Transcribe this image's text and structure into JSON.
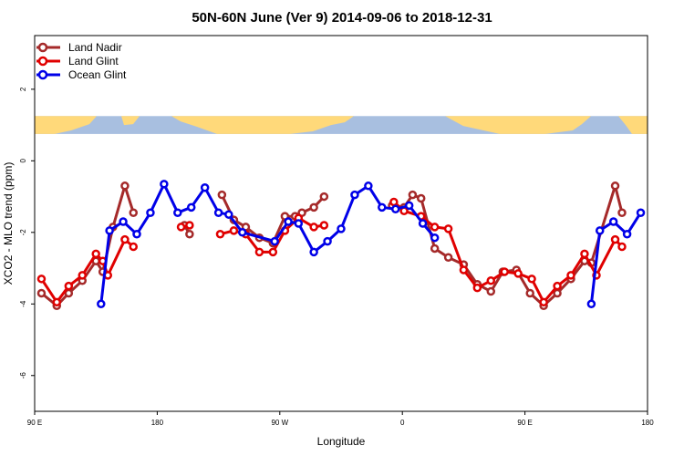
{
  "chart_data": {
    "type": "line",
    "title": "50N-60N June (Ver 9)   2014-09-06 to 2018-12-31",
    "xlabel": "Longitude",
    "ylabel": "XCO2 - MLO trend (ppm)",
    "xlim": [
      0,
      360
    ],
    "ylim": [
      -7,
      3.5
    ],
    "x_ticks": [
      {
        "value": 0,
        "label": "90 E"
      },
      {
        "value": 72,
        "label": "180"
      },
      {
        "value": 144,
        "label": "90 W"
      },
      {
        "value": 216,
        "label": "0"
      },
      {
        "value": 288,
        "label": "90 E"
      },
      {
        "value": 360,
        "label": "180"
      }
    ],
    "y_ticks": [
      2,
      0,
      -2,
      -4,
      -6
    ],
    "legend_position": "top-left",
    "map_strip": {
      "y_top": 1.25,
      "y_bottom": 0.75,
      "ocean_color": "#a8bfe0",
      "land_color": "#ffd97a"
    },
    "series": [
      {
        "name": "Land Nadir",
        "color": "#a52a2a",
        "segments": [
          [
            [
              4,
              -3.7
            ],
            [
              13,
              -4.05
            ],
            [
              20,
              -3.7
            ],
            [
              28,
              -3.35
            ],
            [
              36,
              -2.8
            ],
            [
              40,
              -3.1
            ],
            [
              46,
              -1.85
            ],
            [
              53,
              -0.7
            ],
            [
              58,
              -1.45
            ]
          ],
          [
            [
              88,
              -1.8
            ],
            [
              91,
              -2.05
            ]
          ],
          [
            [
              110,
              -0.95
            ],
            [
              117,
              -1.65
            ],
            [
              124,
              -1.85
            ],
            [
              132,
              -2.15
            ],
            [
              140,
              -2.3
            ],
            [
              147,
              -1.55
            ],
            [
              153,
              -1.55
            ],
            [
              157,
              -1.45
            ],
            [
              164,
              -1.3
            ],
            [
              170,
              -1.0
            ]
          ],
          [
            [
              210,
              -1.25
            ],
            [
              217,
              -1.3
            ],
            [
              222,
              -0.95
            ],
            [
              227,
              -1.05
            ],
            [
              235,
              -2.45
            ],
            [
              243,
              -2.7
            ],
            [
              252,
              -2.9
            ],
            [
              260,
              -3.45
            ],
            [
              268,
              -3.65
            ],
            [
              275,
              -3.1
            ],
            [
              283,
              -3.05
            ],
            [
              291,
              -3.7
            ],
            [
              299,
              -4.05
            ],
            [
              307,
              -3.7
            ],
            [
              315,
              -3.3
            ],
            [
              323,
              -2.8
            ],
            [
              327,
              -2.85
            ],
            [
              341,
              -0.7
            ],
            [
              345,
              -1.45
            ]
          ]
        ]
      },
      {
        "name": "Land Glint",
        "color": "#e00000",
        "segments": [
          [
            [
              4,
              -3.3
            ],
            [
              13,
              -3.95
            ],
            [
              20,
              -3.5
            ],
            [
              28,
              -3.2
            ],
            [
              36,
              -2.6
            ],
            [
              40,
              -2.8
            ],
            [
              43,
              -3.2
            ],
            [
              53,
              -2.2
            ],
            [
              58,
              -2.4
            ]
          ],
          [
            [
              86,
              -1.85
            ],
            [
              91,
              -1.8
            ]
          ],
          [
            [
              109,
              -2.05
            ],
            [
              117,
              -1.95
            ],
            [
              124,
              -2.05
            ],
            [
              132,
              -2.55
            ],
            [
              140,
              -2.55
            ],
            [
              147,
              -1.95
            ],
            [
              155,
              -1.6
            ],
            [
              164,
              -1.85
            ],
            [
              170,
              -1.8
            ]
          ],
          [
            [
              211,
              -1.15
            ],
            [
              217,
              -1.4
            ],
            [
              227,
              -1.55
            ],
            [
              235,
              -1.85
            ],
            [
              243,
              -1.9
            ],
            [
              252,
              -3.05
            ],
            [
              260,
              -3.55
            ],
            [
              268,
              -3.35
            ],
            [
              276,
              -3.1
            ],
            [
              284,
              -3.15
            ],
            [
              292,
              -3.3
            ],
            [
              299,
              -3.95
            ],
            [
              307,
              -3.5
            ],
            [
              315,
              -3.2
            ],
            [
              323,
              -2.6
            ],
            [
              330,
              -3.2
            ],
            [
              341,
              -2.2
            ],
            [
              345,
              -2.4
            ]
          ]
        ]
      },
      {
        "name": "Ocean Glint",
        "color": "#0000e8",
        "segments": [
          [
            [
              39,
              -4.0
            ],
            [
              44,
              -1.95
            ],
            [
              52,
              -1.7
            ],
            [
              60,
              -2.05
            ],
            [
              68,
              -1.45
            ],
            [
              76,
              -0.65
            ],
            [
              84,
              -1.45
            ],
            [
              92,
              -1.3
            ],
            [
              100,
              -0.75
            ],
            [
              108,
              -1.45
            ],
            [
              114,
              -1.5
            ],
            [
              122,
              -2.0
            ],
            [
              141,
              -2.25
            ],
            [
              149,
              -1.7
            ],
            [
              155,
              -1.75
            ],
            [
              164,
              -2.55
            ],
            [
              172,
              -2.25
            ],
            [
              180,
              -1.9
            ],
            [
              188,
              -0.95
            ],
            [
              196,
              -0.7
            ],
            [
              204,
              -1.3
            ],
            [
              212,
              -1.35
            ],
            [
              220,
              -1.25
            ],
            [
              228,
              -1.75
            ],
            [
              235,
              -2.15
            ]
          ],
          [
            [
              327,
              -4.0
            ],
            [
              332,
              -1.95
            ],
            [
              340,
              -1.7
            ],
            [
              348,
              -2.05
            ],
            [
              356,
              -1.45
            ]
          ]
        ]
      }
    ]
  }
}
